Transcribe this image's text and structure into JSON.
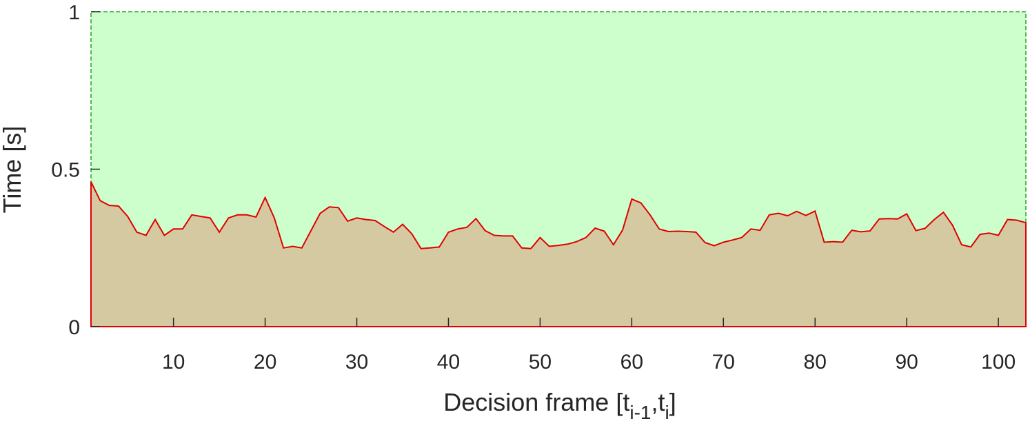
{
  "chart_data": {
    "type": "area",
    "xlabel": "Decision frame [t",
    "xlabel_sub1": "i-1",
    "xlabel_mid": ",t",
    "xlabel_sub2": "i",
    "xlabel_end": "]",
    "ylabel": "Time [s]",
    "xlim": [
      1,
      103
    ],
    "ylim": [
      0,
      1
    ],
    "grid": false,
    "x_ticks": [
      10,
      20,
      30,
      40,
      50,
      60,
      70,
      80,
      90,
      100
    ],
    "y_ticks": [
      0,
      0.5,
      1
    ],
    "x_tick_labels": [
      "10",
      "20",
      "30",
      "40",
      "50",
      "60",
      "70",
      "80",
      "90",
      "100"
    ],
    "y_tick_labels": [
      "0",
      "0.5",
      "1"
    ],
    "background_band": {
      "from": 0,
      "to": 1,
      "color": "#ccffcc",
      "edge_color": "#2ca02c"
    },
    "series": [
      {
        "color": "#e00000",
        "fill": "#d4c9a1",
        "x": [
          1,
          2,
          3,
          4,
          5,
          6,
          7,
          8,
          9,
          10,
          11,
          12,
          13,
          14,
          15,
          16,
          17,
          18,
          19,
          20,
          21,
          22,
          23,
          24,
          25,
          26,
          27,
          28,
          29,
          30,
          31,
          32,
          33,
          34,
          35,
          36,
          37,
          38,
          39,
          40,
          41,
          42,
          43,
          44,
          45,
          46,
          47,
          48,
          49,
          50,
          51,
          52,
          53,
          54,
          55,
          56,
          57,
          58,
          59,
          60,
          61,
          62,
          63,
          64,
          65,
          66,
          67,
          68,
          69,
          70,
          71,
          72,
          73,
          74,
          75,
          76,
          77,
          78,
          79,
          80,
          81,
          82,
          83,
          84,
          85,
          86,
          87,
          88,
          89,
          90,
          91,
          92,
          93,
          94,
          95,
          96,
          97,
          98,
          99,
          100,
          101,
          102,
          103
        ],
        "values": [
          0.46,
          0.4,
          0.385,
          0.383,
          0.35,
          0.3,
          0.29,
          0.34,
          0.29,
          0.31,
          0.31,
          0.355,
          0.35,
          0.345,
          0.3,
          0.345,
          0.355,
          0.355,
          0.348,
          0.41,
          0.345,
          0.25,
          0.255,
          0.25,
          0.305,
          0.36,
          0.38,
          0.378,
          0.335,
          0.345,
          0.34,
          0.337,
          0.318,
          0.3,
          0.325,
          0.295,
          0.248,
          0.25,
          0.253,
          0.3,
          0.31,
          0.315,
          0.343,
          0.305,
          0.29,
          0.288,
          0.288,
          0.25,
          0.248,
          0.283,
          0.255,
          0.258,
          0.262,
          0.27,
          0.283,
          0.313,
          0.303,
          0.26,
          0.307,
          0.405,
          0.393,
          0.355,
          0.31,
          0.302,
          0.303,
          0.302,
          0.3,
          0.267,
          0.257,
          0.268,
          0.275,
          0.283,
          0.31,
          0.306,
          0.355,
          0.36,
          0.352,
          0.366,
          0.353,
          0.367,
          0.268,
          0.27,
          0.268,
          0.306,
          0.301,
          0.304,
          0.342,
          0.343,
          0.342,
          0.358,
          0.305,
          0.312,
          0.34,
          0.363,
          0.322,
          0.26,
          0.253,
          0.293,
          0.297,
          0.29,
          0.34,
          0.338,
          0.33
        ]
      }
    ]
  }
}
